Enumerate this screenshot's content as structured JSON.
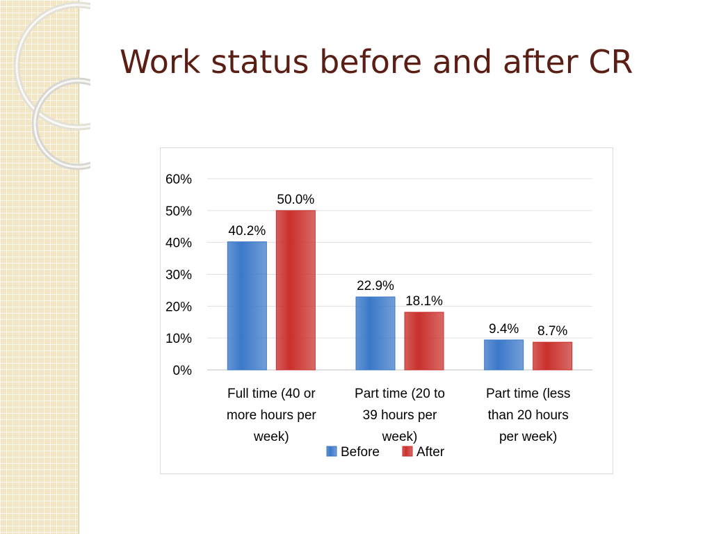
{
  "slide": {
    "title": "Work status before and after CR"
  },
  "colors": {
    "before": "#3b78c9",
    "after": "#c9302c",
    "title": "#5a1e14",
    "sidebar": "#f2e6c4"
  },
  "chart_data": {
    "type": "bar",
    "title": "",
    "xlabel": "",
    "ylabel": "",
    "ylim": [
      0,
      60
    ],
    "y_ticks": [
      "0%",
      "10%",
      "20%",
      "30%",
      "40%",
      "50%",
      "60%"
    ],
    "grid": true,
    "legend_position": "bottom",
    "categories": [
      [
        "Full time (40 or",
        "more hours per",
        "week)"
      ],
      [
        "Part time (20 to",
        "39 hours per",
        "week)"
      ],
      [
        "Part time (less",
        "than 20 hours",
        "per week)"
      ]
    ],
    "series": [
      {
        "name": "Before",
        "values": [
          40.2,
          22.9,
          9.4
        ],
        "labels": [
          "40.2%",
          "22.9%",
          "9.4%"
        ]
      },
      {
        "name": "After",
        "values": [
          50.0,
          18.1,
          8.7
        ],
        "labels": [
          "50.0%",
          "18.1%",
          "8.7%"
        ]
      }
    ]
  }
}
